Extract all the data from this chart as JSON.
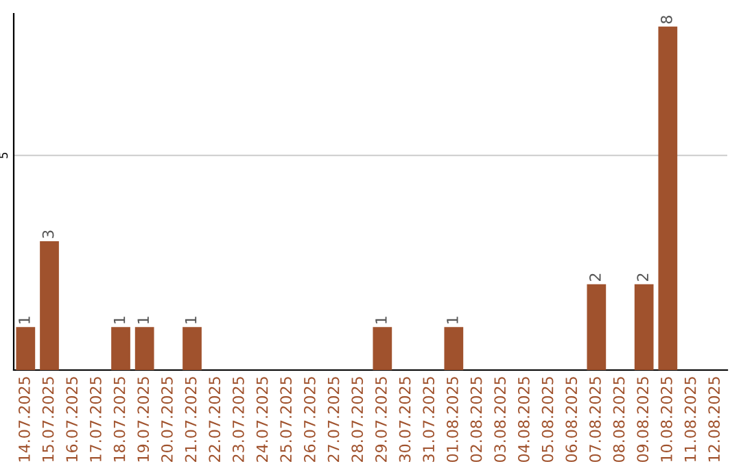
{
  "chart_data": {
    "type": "bar",
    "categories": [
      "14.07.2025",
      "15.07.2025",
      "16.07.2025",
      "17.07.2025",
      "18.07.2025",
      "19.07.2025",
      "20.07.2025",
      "21.07.2025",
      "22.07.2025",
      "23.07.2025",
      "24.07.2025",
      "25.07.2025",
      "26.07.2025",
      "27.07.2025",
      "28.07.2025",
      "29.07.2025",
      "30.07.2025",
      "31.07.2025",
      "01.08.2025",
      "02.08.2025",
      "03.08.2025",
      "04.08.2025",
      "05.08.2025",
      "06.08.2025",
      "07.08.2025",
      "08.08.2025",
      "09.08.2025",
      "10.08.2025",
      "11.08.2025",
      "12.08.2025"
    ],
    "values": [
      1,
      3,
      0,
      0,
      1,
      1,
      0,
      1,
      0,
      0,
      0,
      0,
      0,
      0,
      0,
      1,
      0,
      0,
      1,
      0,
      0,
      0,
      0,
      0,
      2,
      0,
      2,
      8,
      0,
      0
    ],
    "value_labels": [
      "1",
      "3",
      null,
      null,
      "1",
      "1",
      null,
      "1",
      null,
      null,
      null,
      null,
      null,
      null,
      null,
      "1",
      null,
      null,
      "1",
      null,
      null,
      null,
      null,
      null,
      "2",
      null,
      "2",
      "8",
      null,
      null
    ],
    "color": "#a0522d",
    "ylim": [
      0,
      8.3
    ],
    "yticks": [
      0,
      5
    ],
    "grid": "y"
  }
}
